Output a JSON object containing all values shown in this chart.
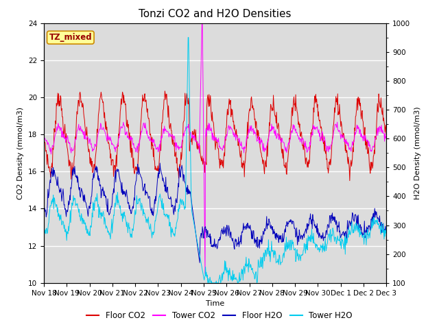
{
  "title": "Tonzi CO2 and H2O Densities",
  "xlabel": "Time",
  "ylabel_left": "CO2 Density (mmol/m3)",
  "ylabel_right": "H2O Density (mmol/m3)",
  "ylim_left": [
    10,
    24
  ],
  "ylim_right": [
    100,
    1000
  ],
  "yticks_left": [
    10,
    12,
    14,
    16,
    18,
    20,
    22,
    24
  ],
  "yticks_right": [
    100,
    200,
    300,
    400,
    500,
    600,
    700,
    800,
    900,
    1000
  ],
  "xtick_labels": [
    "Nov 18",
    "Nov 19",
    "Nov 20",
    "Nov 21",
    "Nov 22",
    "Nov 23",
    "Nov 24",
    "Nov 25",
    "Nov 26",
    "Nov 27",
    "Nov 28",
    "Nov 29",
    "Nov 30",
    "Dec 1",
    "Dec 2",
    "Dec 3"
  ],
  "background_color": "#dcdcdc",
  "annotation_text": "TZ_mixed",
  "annotation_facecolor": "#ffff99",
  "annotation_edgecolor": "#cc8800",
  "colors": {
    "floor_co2": "#dd0000",
    "tower_co2": "#ff00ff",
    "floor_h2o": "#0000bb",
    "tower_h2o": "#00ccee"
  },
  "legend_labels": [
    "Floor CO2",
    "Tower CO2",
    "Floor H2O",
    "Tower H2O"
  ],
  "title_fontsize": 11,
  "axis_label_fontsize": 8,
  "tick_fontsize": 7.5,
  "linewidth": 0.7
}
